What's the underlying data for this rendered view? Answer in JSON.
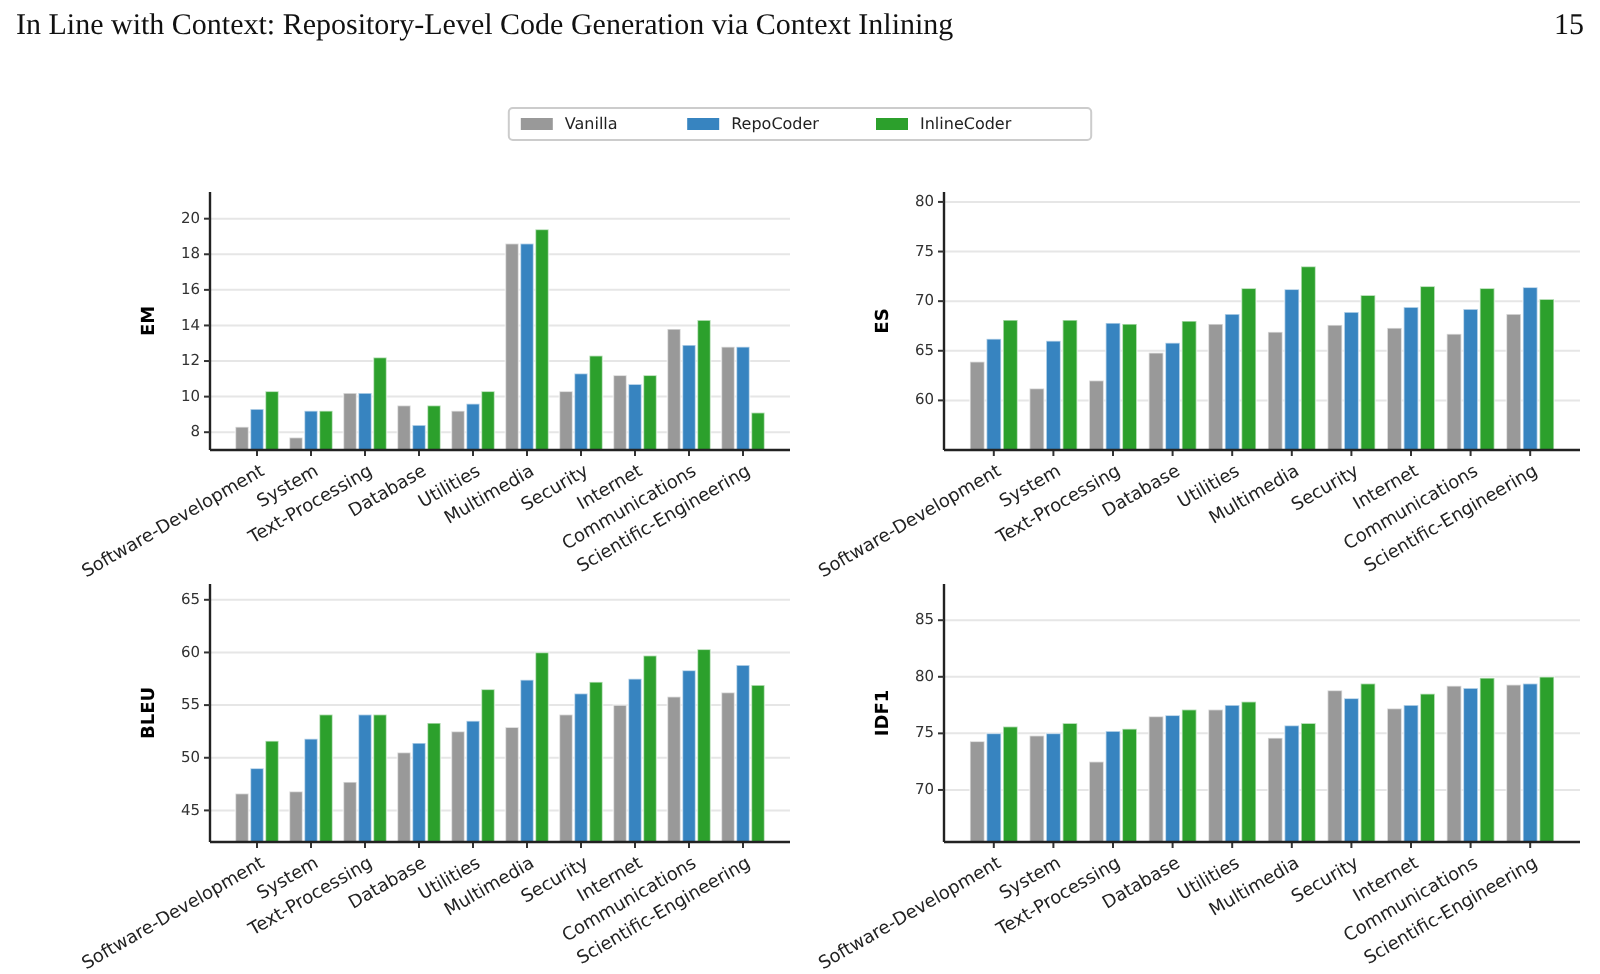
{
  "chart_data": [
    {
      "type": "bar",
      "annotations": [
        "In Line with Context: Repository-Level Code Generation via Context Inlining",
        "15"
      ],
      "ylabel": "EM",
      "legend": "top",
      "grid": "y",
      "categories": [
        "Software-Development",
        "System",
        "Text-Processing",
        "Database",
        "Utilities",
        "Multimedia",
        "Security",
        "Internet",
        "Communications",
        "Scientific-Engineering"
      ],
      "ylim": [
        7,
        21.5
      ],
      "yticks": [
        8,
        10,
        12,
        14,
        16,
        18,
        20
      ],
      "series": [
        {
          "name": "Vanilla",
          "color": "#999999",
          "values": [
            8.3,
            7.7,
            10.2,
            9.5,
            9.2,
            18.6,
            10.3,
            11.2,
            13.8,
            12.8
          ]
        },
        {
          "name": "RepoCoder",
          "color": "#3784c0",
          "values": [
            9.3,
            9.2,
            10.2,
            8.4,
            9.6,
            18.6,
            11.3,
            10.7,
            12.9,
            12.8
          ]
        },
        {
          "name": "InlineCoder",
          "color": "#2ca02c",
          "values": [
            10.3,
            9.2,
            12.2,
            9.5,
            10.3,
            19.4,
            12.3,
            11.2,
            14.3,
            9.1
          ]
        }
      ]
    },
    {
      "type": "bar",
      "ylabel": "ES",
      "grid": "y",
      "categories": [
        "Software-Development",
        "System",
        "Text-Processing",
        "Database",
        "Utilities",
        "Multimedia",
        "Security",
        "Internet",
        "Communications",
        "Scientific-Engineering"
      ],
      "ylim": [
        55,
        81
      ],
      "yticks": [
        60,
        65,
        70,
        75,
        80
      ],
      "series": [
        {
          "color": "#999999",
          "values": [
            63.9,
            61.2,
            62.0,
            64.8,
            67.7,
            66.9,
            67.6,
            67.3,
            66.7,
            68.7
          ]
        },
        {
          "color": "#3784c0",
          "values": [
            66.2,
            66.0,
            67.8,
            65.8,
            68.7,
            71.2,
            68.9,
            69.4,
            69.2,
            71.4
          ]
        },
        {
          "color": "#2ca02c",
          "values": [
            68.1,
            68.1,
            67.7,
            68.0,
            71.3,
            73.5,
            70.6,
            71.5,
            71.3,
            70.2
          ]
        }
      ]
    },
    {
      "type": "bar",
      "ylabel": "BLEU",
      "grid": "y",
      "categories": [
        "Software-Development",
        "System",
        "Text-Processing",
        "Database",
        "Utilities",
        "Multimedia",
        "Security",
        "Internet",
        "Communications",
        "Scientific-Engineering"
      ],
      "ylim": [
        42,
        66.5
      ],
      "yticks": [
        45,
        50,
        55,
        60,
        65
      ],
      "series": [
        {
          "color": "#999999",
          "values": [
            46.6,
            46.8,
            47.7,
            50.5,
            52.5,
            52.9,
            54.1,
            55.0,
            55.8,
            56.2
          ]
        },
        {
          "color": "#3784c0",
          "values": [
            49.0,
            51.8,
            54.1,
            51.4,
            53.5,
            57.4,
            56.1,
            57.5,
            58.3,
            58.8
          ]
        },
        {
          "color": "#2ca02c",
          "values": [
            51.6,
            54.1,
            54.1,
            53.3,
            56.5,
            60.0,
            57.2,
            59.7,
            60.3,
            56.9
          ]
        }
      ]
    },
    {
      "type": "bar",
      "ylabel": "IDF1",
      "grid": "y",
      "categories": [
        "Software-Development",
        "System",
        "Text-Processing",
        "Database",
        "Utilities",
        "Multimedia",
        "Security",
        "Internet",
        "Communications",
        "Scientific-Engineering"
      ],
      "ylim": [
        65.4,
        88.2
      ],
      "yticks": [
        70,
        75,
        80,
        85
      ],
      "series": [
        {
          "color": "#999999",
          "values": [
            74.3,
            74.8,
            72.5,
            76.5,
            77.1,
            74.6,
            78.8,
            77.2,
            79.2,
            79.3
          ]
        },
        {
          "color": "#3784c0",
          "values": [
            75.0,
            75.0,
            75.2,
            76.6,
            77.5,
            75.7,
            78.1,
            77.5,
            79.0,
            79.4
          ]
        },
        {
          "color": "#2ca02c",
          "values": [
            75.6,
            75.9,
            75.4,
            77.1,
            77.8,
            75.9,
            79.4,
            78.5,
            79.9,
            80.0
          ]
        }
      ]
    }
  ]
}
